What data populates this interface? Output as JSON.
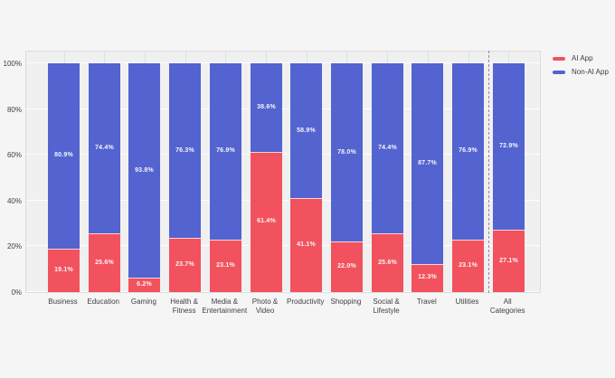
{
  "colors": {
    "ai_app": "#f1525e",
    "non_ai_app": "#5363cf",
    "page_background": "#f5f5f6",
    "plot_background": "#f0f0f1",
    "plot_border": "#dcdcdf",
    "h_gridline": "#fdfdfd",
    "v_gridline": "#e1e1e5",
    "separator_line": "#8f8f94",
    "axis_text": "#3f3f44",
    "bar_label_text": "#ffffff"
  },
  "legend": {
    "items": [
      {
        "label": "AI App",
        "color": "#f1525e"
      },
      {
        "label": "Non-AI App",
        "color": "#5363cf"
      }
    ]
  },
  "chart_data": {
    "type": "bar",
    "stacked": true,
    "orientation": "vertical",
    "title": "",
    "xlabel": "",
    "ylabel": "",
    "categories": [
      "Business",
      "Education",
      "Gaming",
      "Health & Fitness",
      "Media & Entertainment",
      "Photo & Video",
      "Productivity",
      "Shopping",
      "Social & Lifestyle",
      "Travel",
      "Utilities",
      "All Categories"
    ],
    "x_tick_labels": [
      "Business",
      "Education",
      "Gaming",
      "Health &\nFitness",
      "Media &\nEntertainment",
      "Photo &\nVideo",
      "Productivity",
      "Shopping",
      "Social &\nLifestyle",
      "Travel",
      "Utilities",
      "All\nCategories"
    ],
    "series": [
      {
        "name": "AI App",
        "color": "#f1525e",
        "values": [
          19.1,
          25.6,
          6.2,
          23.7,
          23.1,
          61.4,
          41.1,
          22.0,
          25.6,
          12.3,
          23.1,
          27.1
        ]
      },
      {
        "name": "Non-AI App",
        "color": "#5363cf",
        "values": [
          80.9,
          74.4,
          93.8,
          76.3,
          76.9,
          38.6,
          58.9,
          78.0,
          74.4,
          87.7,
          76.9,
          72.9
        ]
      }
    ],
    "value_label_suffix": "%",
    "value_label_decimals": 1,
    "y_ticks": [
      0,
      20,
      40,
      60,
      80,
      100
    ],
    "y_tick_labels": [
      "0%",
      "20%",
      "40%",
      "60%",
      "80%",
      "100%"
    ],
    "ylim": [
      0,
      106
    ],
    "grid": true,
    "legend_position": "top-right",
    "separator_after_index": 10
  }
}
